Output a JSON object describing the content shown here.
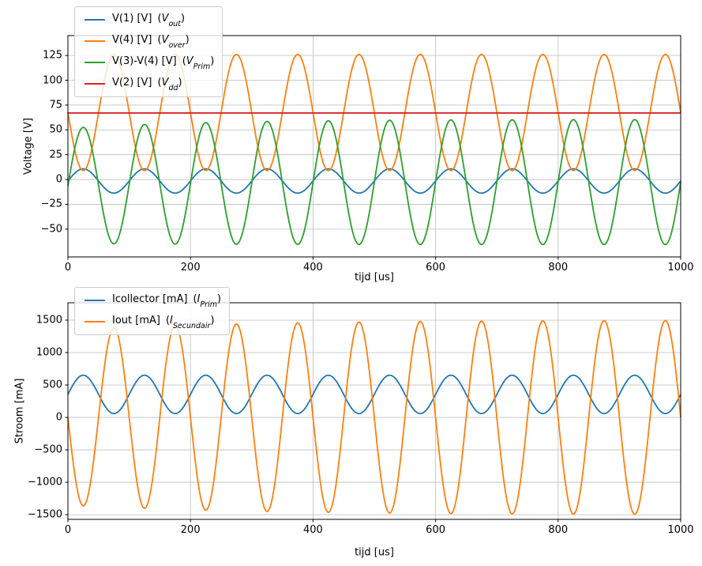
{
  "figure": {
    "background": "#ffffff",
    "grid_color": "#bdbdbd",
    "spine_color": "#000000"
  },
  "punct": {
    "open": "(",
    "close": ")"
  },
  "legends": [
    {
      "items": [
        {
          "label": "V(1) [V]",
          "var": "V",
          "sub": "out"
        },
        {
          "label": "V(4) [V]",
          "var": "V",
          "sub": "over"
        },
        {
          "label": "V(3)-V(4) [V]",
          "var": "V",
          "sub": "Prim"
        },
        {
          "label": "V(2) [V]",
          "var": "V",
          "sub": "dd"
        }
      ]
    },
    {
      "items": [
        {
          "label": "Icollector [mA]",
          "var": "I",
          "sub": "Prim"
        },
        {
          "label": "Iout [mA]",
          "var": "I",
          "sub": "Secundair"
        }
      ]
    }
  ],
  "chart_data": [
    {
      "type": "line",
      "title": "",
      "xlabel": "tijd [us]",
      "ylabel": "Voltage [V]",
      "xlim": [
        0,
        1000
      ],
      "ylim": [
        -78,
        145
      ],
      "xticks": [
        0,
        200,
        400,
        600,
        800,
        1000
      ],
      "yticks": [
        -50,
        -25,
        0,
        25,
        50,
        75,
        100,
        125
      ],
      "grid": true,
      "legend_position": "upper left",
      "period_us": 100,
      "series": [
        {
          "name": "V(1) [V] (V_out)",
          "color": "#1f77b4",
          "model": "sine",
          "period": 100,
          "offset": -1.5,
          "amp": 12.2,
          "peak_V": 11,
          "min_V": -14
        },
        {
          "name": "V(4) [V] (V_over)",
          "color": "#ff7f0e",
          "model": "sine",
          "period": 100,
          "offset": 67.5,
          "amp": -58.5,
          "peak_V": 126,
          "min_V": 9
        },
        {
          "name": "V(3)-V(4) [V] (V_Prim)",
          "color": "#2ca02c",
          "model": "sine",
          "period": 100,
          "offset": -2.5,
          "offset_tr": -4,
          "amp": 63,
          "amp_tr": -5,
          "tau": 220,
          "peak_V": 60,
          "min_V": -66
        },
        {
          "name": "V(2) [V] (V_dd)",
          "color": "#d62728",
          "model": "const",
          "value": 67
        }
      ]
    },
    {
      "type": "line",
      "title": "",
      "xlabel": "tijd [us]",
      "ylabel": "Stroom [mA]",
      "xlim": [
        0,
        1000
      ],
      "ylim": [
        -1572,
        1768
      ],
      "xticks": [
        0,
        200,
        400,
        600,
        800,
        1000
      ],
      "yticks": [
        -1500,
        -1000,
        -500,
        0,
        500,
        1000,
        1500
      ],
      "grid": true,
      "legend_position": "upper left",
      "period_us": 100,
      "series": [
        {
          "name": "Icollector [mA] (I_Prim)",
          "color": "#1f77b4",
          "model": "sine",
          "period": 100,
          "offset": 355,
          "amp": 295,
          "peak_mA": 650,
          "min_mA": 60
        },
        {
          "name": "Iout [mA] (I_Secundair)",
          "color": "#ff7f0e",
          "model": "sine",
          "period": 100,
          "offset": 0,
          "amp": -1500,
          "amp_tr": 150,
          "tau": 300,
          "peak_mA": 1500,
          "min_mA": -1500
        }
      ]
    }
  ]
}
